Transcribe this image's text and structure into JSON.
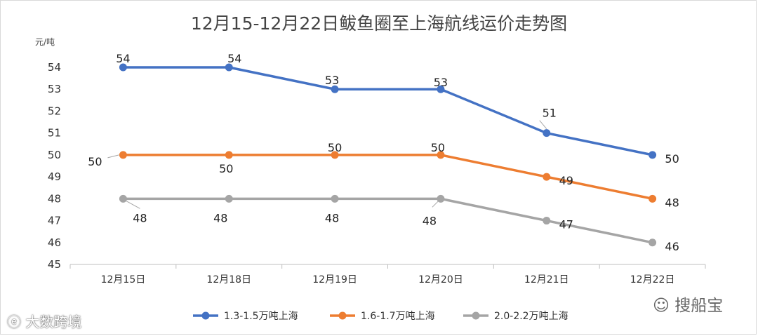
{
  "chart_data": {
    "type": "line",
    "title": "12月15-12月22日鲅鱼圈至上海航线运价走势图",
    "ylabel": "元/吨",
    "xlabel": "",
    "categories": [
      "12月15日",
      "12月18日",
      "12月19日",
      "12月20日",
      "12月21日",
      "12月22日"
    ],
    "ylim": [
      45,
      54
    ],
    "yticks": [
      45,
      46,
      47,
      48,
      49,
      50,
      51,
      52,
      53,
      54
    ],
    "grid": false,
    "legend_position": "bottom",
    "series": [
      {
        "name": "1.3-1.5万吨上海",
        "color": "#4472c4",
        "values": [
          54,
          54,
          53,
          53,
          51,
          50
        ]
      },
      {
        "name": "1.6-1.7万吨上海",
        "color": "#ed7d31",
        "values": [
          50,
          50,
          50,
          50,
          49,
          48
        ]
      },
      {
        "name": "2.0-2.2万吨上海",
        "color": "#a5a5a5",
        "values": [
          48,
          48,
          48,
          48,
          47,
          46
        ]
      }
    ]
  },
  "watermarks": {
    "left": "大数跨境",
    "right": "搜船宝"
  }
}
